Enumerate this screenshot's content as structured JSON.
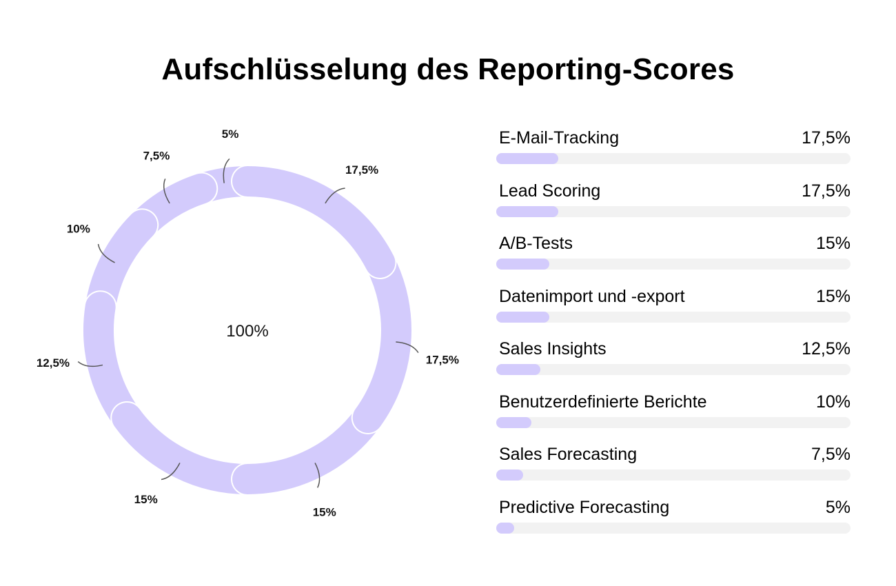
{
  "chart_data": {
    "type": "pie",
    "title": "Aufschlüsselung des Reporting-Scores",
    "center_label": "100%",
    "colors": {
      "slice": "#d3cbfc",
      "track": "#f2f2f2",
      "leader": "#555555"
    },
    "slices": [
      {
        "value": 17.5,
        "label": "17,5%"
      },
      {
        "value": 17.5,
        "label": "17,5%"
      },
      {
        "value": 15,
        "label": "15%"
      },
      {
        "value": 15,
        "label": "15%"
      },
      {
        "value": 12.5,
        "label": "12,5%"
      },
      {
        "value": 10,
        "label": "10%"
      },
      {
        "value": 7.5,
        "label": "7,5%"
      },
      {
        "value": 5,
        "label": "5%"
      }
    ],
    "bars": [
      {
        "name": "E-Mail-Tracking",
        "value": 17.5,
        "label": "17,5%"
      },
      {
        "name": "Lead Scoring",
        "value": 17.5,
        "label": "17,5%"
      },
      {
        "name": "A/B-Tests",
        "value": 15,
        "label": "15%"
      },
      {
        "name": "Datenimport und -export",
        "value": 15,
        "label": "15%"
      },
      {
        "name": "Sales Insights",
        "value": 12.5,
        "label": "12,5%"
      },
      {
        "name": "Benutzerdefinierte Berichte",
        "value": 10,
        "label": "10%"
      },
      {
        "name": "Sales Forecasting",
        "value": 7.5,
        "label": "7,5%"
      },
      {
        "name": "Predictive Forecasting",
        "value": 5,
        "label": "5%"
      }
    ],
    "bar_max": 100
  }
}
